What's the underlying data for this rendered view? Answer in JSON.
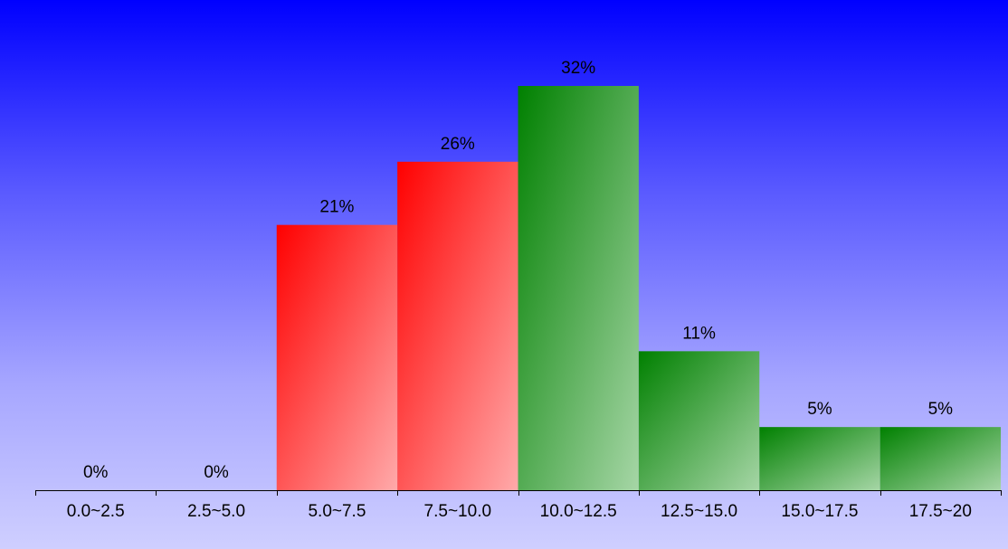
{
  "chart_data": {
    "type": "bar",
    "categories": [
      "0.0~2.5",
      "2.5~5.0",
      "5.0~7.5",
      "7.5~10.0",
      "10.0~12.5",
      "12.5~15.0",
      "15.0~17.5",
      "17.5~20"
    ],
    "values": [
      0,
      0,
      21,
      26,
      32,
      11,
      5,
      5
    ],
    "value_labels": [
      "0%",
      "0%",
      "21%",
      "26%",
      "32%",
      "11%",
      "5%",
      "5%"
    ],
    "unit": "%",
    "ylim": [
      0,
      32
    ],
    "grid": false,
    "legend": "none",
    "bar_colors": [
      "#ff0000",
      "#ff0000",
      "#ff0000",
      "#ff0000",
      "#008000",
      "#008000",
      "#008000",
      "#008000"
    ],
    "bar_highlight_colors": [
      "#ffaaaa",
      "#ffaaaa",
      "#ffaaaa",
      "#ffaaaa",
      "#a6d6a6",
      "#a6d6a6",
      "#a6d6a6",
      "#a6d6a6"
    ]
  },
  "colors": {
    "background_top": "#0000ff",
    "background_bottom": "#cfcfff",
    "axis": "#000000",
    "text": "#000000"
  }
}
